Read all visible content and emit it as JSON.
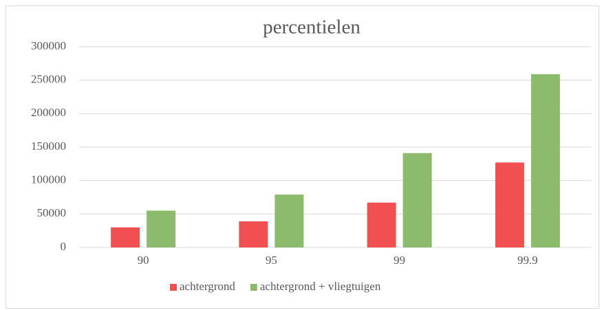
{
  "chart_data": {
    "type": "bar",
    "title": "percentielen",
    "categories": [
      "90",
      "95",
      "99",
      "99.9"
    ],
    "series": [
      {
        "name": "achtergrond",
        "color": "#f05050",
        "values": [
          30000,
          39000,
          67000,
          127000
        ]
      },
      {
        "name": "achtergrond + vliegtuigen",
        "color": "#8cbb6c",
        "values": [
          55000,
          79000,
          141000,
          259000
        ]
      }
    ],
    "ylim": [
      0,
      300000
    ],
    "yticks": [
      0,
      50000,
      100000,
      150000,
      200000,
      250000,
      300000
    ],
    "grid": true,
    "legend": "bottom"
  }
}
